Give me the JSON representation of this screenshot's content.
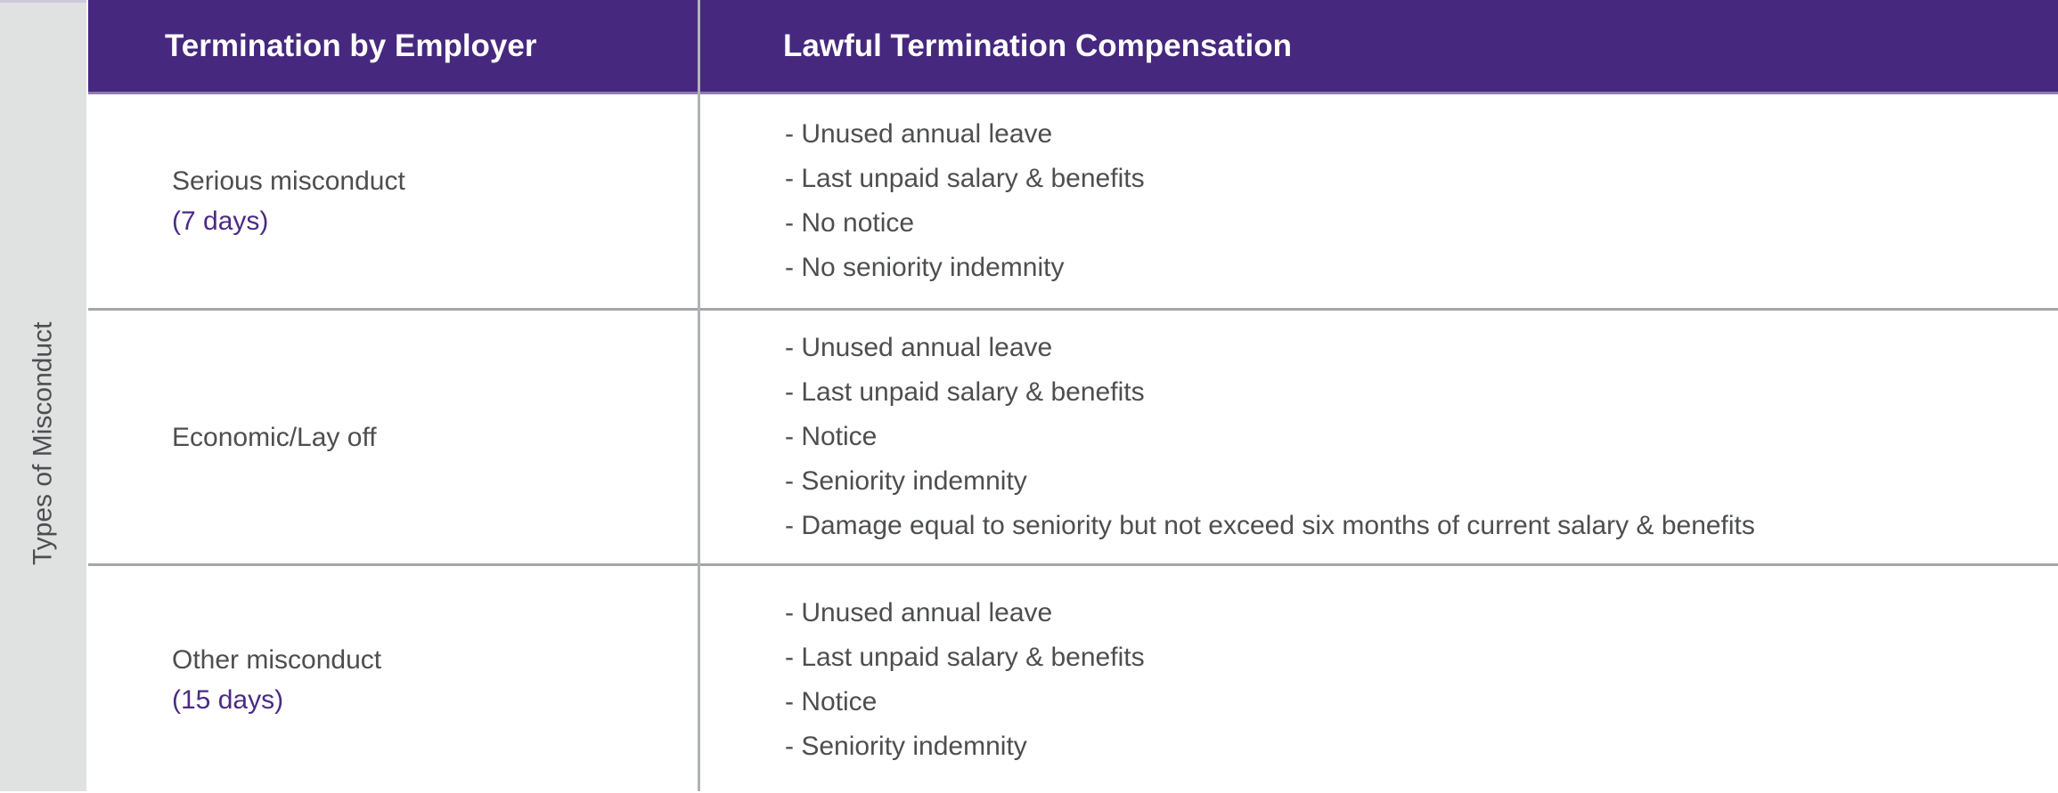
{
  "table": {
    "side_label": "Types of Misconduct",
    "header": {
      "col1": "Termination by Employer",
      "col2": "Lawful Termination Compensation"
    },
    "rows": [
      {
        "type": "Serious misconduct",
        "note": "(7 days)",
        "items": [
          "- Unused annual leave",
          "- Last unpaid salary & benefits",
          "- No notice",
          "- No seniority indemnity"
        ]
      },
      {
        "type": "Economic/Lay off",
        "note": "",
        "items": [
          "- Unused annual leave",
          "- Last unpaid salary & benefits",
          "- Notice",
          "- Seniority indemnity",
          "- Damage equal to seniority but not exceed six months of current salary & benefits"
        ]
      },
      {
        "type": "Other misconduct",
        "note": "(15 days)",
        "items": [
          "- Unused annual leave",
          "- Last unpaid salary & benefits",
          "- Notice",
          "- Seniority indemnity"
        ]
      }
    ]
  },
  "colors": {
    "header_bg": "#46287e",
    "header_text": "#ffffff",
    "header_underline": "#8f7bb0",
    "side_strip_bg": "#e0e1e1",
    "side_strip_top_edge": "#cfc8dc",
    "row_divider": "#a4a6a9",
    "column_divider": "#b0b2b5",
    "body_text": "#4d4e50",
    "accent_text": "#4b2a85"
  }
}
